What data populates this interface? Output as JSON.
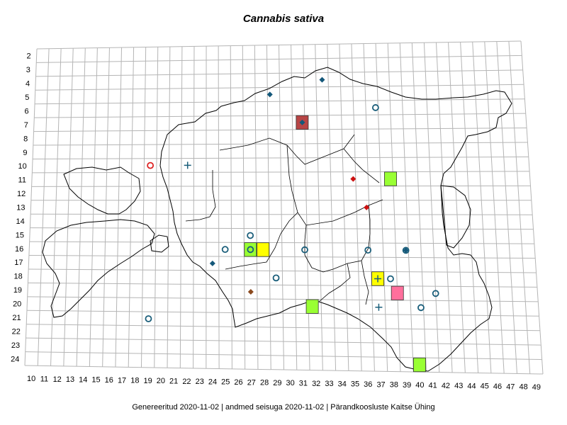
{
  "title": "Cannabis sativa",
  "footer": "Genereeritud 2020-11-02  |  andmed seisuga 2020-11-02  |  Pärandkoosluste Kaitse Ühing",
  "grid": {
    "rows": [
      "2",
      "3",
      "4",
      "5",
      "6",
      "7",
      "8",
      "9",
      "10",
      "11",
      "12",
      "13",
      "14",
      "15",
      "16",
      "17",
      "18",
      "19",
      "20",
      "21",
      "22",
      "23",
      "24"
    ],
    "cols": [
      "10",
      "11",
      "12",
      "13",
      "14",
      "15",
      "16",
      "17",
      "18",
      "19",
      "20",
      "21",
      "22",
      "23",
      "24",
      "25",
      "26",
      "27",
      "28",
      "29",
      "30",
      "31",
      "32",
      "33",
      "34",
      "35",
      "36",
      "37",
      "38",
      "39",
      "40",
      "41",
      "42",
      "43",
      "44",
      "45",
      "46",
      "47",
      "48",
      "49"
    ]
  },
  "colors": {
    "grid": "#b5b5b5",
    "border": "#000000",
    "circle": "#1a5e7a",
    "diamond_blue": "#14587a",
    "diamond_red": "#cc1111",
    "diamond_brown": "#8b4a1f",
    "plus": "#1a5e7a",
    "square_dark_red": "#b84545",
    "square_yellow": "#ffff00",
    "square_green": "#99ff33",
    "square_pink": "#ff6f9c",
    "red_circle": "#dd2222"
  },
  "markers": [
    {
      "type": "diamond",
      "color": "diamond_blue",
      "col": 33,
      "row": 4
    },
    {
      "type": "diamond",
      "color": "diamond_blue",
      "col": 28.7,
      "row": 5
    },
    {
      "type": "circle",
      "color": "circle",
      "col": 37.3,
      "row": 6
    },
    {
      "type": "square",
      "color": "square_dark_red",
      "col": 31.3,
      "row": 7
    },
    {
      "type": "diamond",
      "color": "diamond_blue",
      "col": 31.3,
      "row": 7
    },
    {
      "type": "circle",
      "color": "red_circle",
      "col": 19,
      "row": 10
    },
    {
      "type": "plus",
      "color": "plus",
      "col": 22,
      "row": 10
    },
    {
      "type": "square",
      "color": "square_green",
      "col": 38.3,
      "row": 11
    },
    {
      "type": "diamond",
      "color": "diamond_red",
      "col": 35.3,
      "row": 11
    },
    {
      "type": "diamond",
      "color": "diamond_red",
      "col": 36.3,
      "row": 13
    },
    {
      "type": "circle",
      "color": "circle",
      "col": 27,
      "row": 15
    },
    {
      "type": "square",
      "color": "square_green",
      "col": 27,
      "row": 16
    },
    {
      "type": "square",
      "color": "square_yellow",
      "col": 28,
      "row": 16
    },
    {
      "type": "circle",
      "color": "circle",
      "col": 27,
      "row": 16
    },
    {
      "type": "circle",
      "color": "circle",
      "col": 25,
      "row": 16
    },
    {
      "type": "circle",
      "color": "circle",
      "col": 31.3,
      "row": 16
    },
    {
      "type": "circle",
      "color": "circle",
      "col": 36.3,
      "row": 16
    },
    {
      "type": "circle",
      "color": "circle",
      "col": 39.3,
      "row": 16
    },
    {
      "type": "diamond",
      "color": "diamond_blue",
      "col": 39.3,
      "row": 16
    },
    {
      "type": "diamond",
      "color": "diamond_blue",
      "col": 24,
      "row": 17
    },
    {
      "type": "circle",
      "color": "circle",
      "col": 29,
      "row": 18
    },
    {
      "type": "square",
      "color": "square_yellow",
      "col": 37,
      "row": 18
    },
    {
      "type": "plus",
      "color": "plus",
      "col": 37,
      "row": 18
    },
    {
      "type": "circle",
      "color": "circle",
      "col": 38,
      "row": 18
    },
    {
      "type": "square",
      "color": "square_pink",
      "col": 38.5,
      "row": 19
    },
    {
      "type": "circle",
      "color": "circle",
      "col": 41.5,
      "row": 19
    },
    {
      "type": "diamond",
      "color": "diamond_brown",
      "col": 27,
      "row": 19
    },
    {
      "type": "square",
      "color": "square_green",
      "col": 31.8,
      "row": 20
    },
    {
      "type": "plus",
      "color": "plus",
      "col": 37,
      "row": 20
    },
    {
      "type": "circle",
      "color": "circle",
      "col": 40.3,
      "row": 20
    },
    {
      "type": "circle",
      "color": "circle",
      "col": 19,
      "row": 21
    },
    {
      "type": "square",
      "color": "square_green",
      "col": 40,
      "row": 24
    }
  ]
}
